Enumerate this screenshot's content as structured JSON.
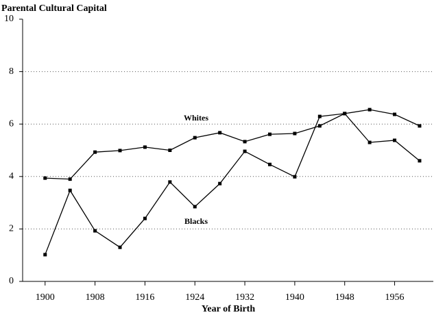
{
  "chart_data": {
    "type": "line",
    "title": "Parental Cultural Capital",
    "x_label": "Year of Birth",
    "x": [
      1900,
      1904,
      1908,
      1912,
      1916,
      1920,
      1924,
      1928,
      1932,
      1936,
      1940,
      1944,
      1948,
      1952,
      1956,
      1960
    ],
    "series": [
      {
        "name": "Whites",
        "color": "#000000",
        "values": [
          3.94,
          3.9,
          4.93,
          4.99,
          5.12,
          5.0,
          5.48,
          5.67,
          5.33,
          5.61,
          5.64,
          5.93,
          6.4,
          6.55,
          6.37,
          5.93
        ]
      },
      {
        "name": "Blacks",
        "color": "#000000",
        "values": [
          1.02,
          3.47,
          1.93,
          1.3,
          2.4,
          3.79,
          2.85,
          3.73,
          4.96,
          4.46,
          3.99,
          6.29,
          6.4,
          5.3,
          5.38,
          4.6
        ]
      }
    ],
    "xlim": [
      1896.4,
      1962.2
    ],
    "xticks": [
      1900,
      1908,
      1916,
      1924,
      1932,
      1940,
      1948,
      1956
    ],
    "ylim": [
      0,
      10
    ],
    "yticks": [
      0,
      2,
      4,
      6,
      8,
      10
    ],
    "grid": true
  }
}
